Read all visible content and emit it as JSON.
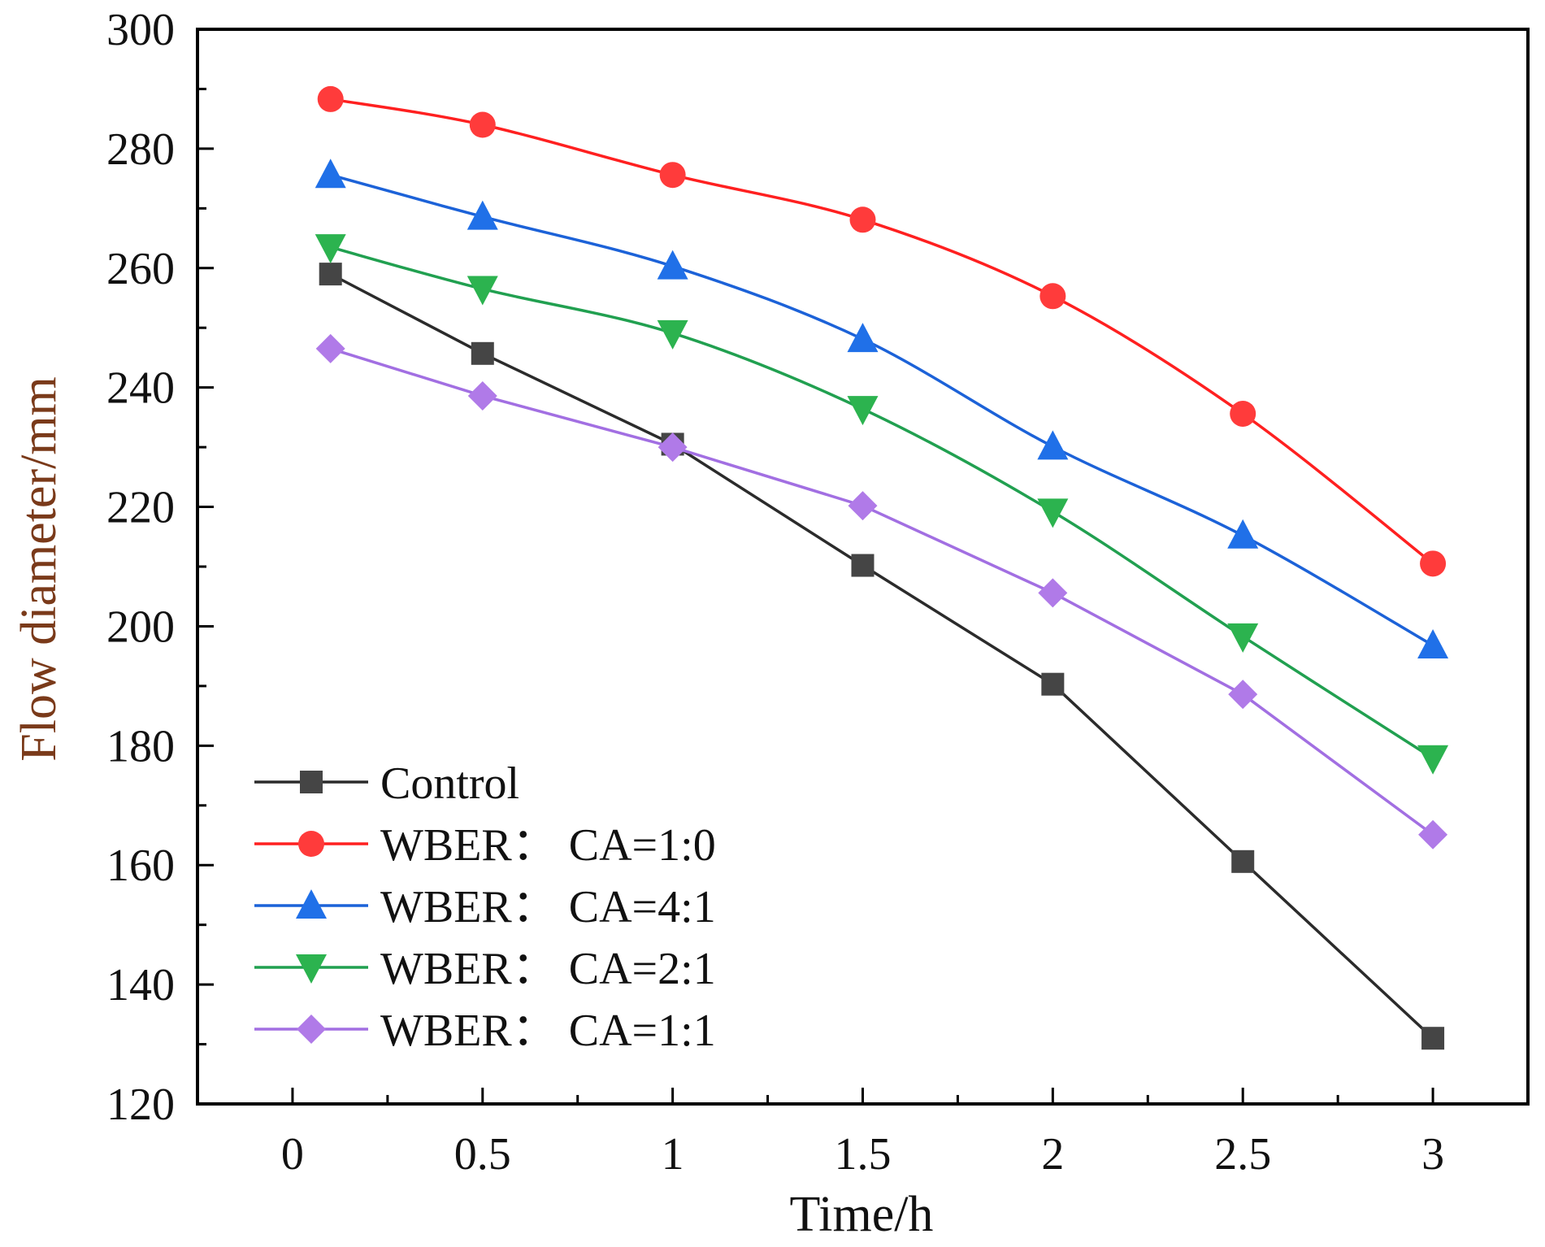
{
  "chart_data": {
    "type": "line",
    "title": "",
    "xlabel": "Time/h",
    "ylabel": "Flow diameter/mm",
    "xlim": [
      -0.25,
      3.25
    ],
    "ylim": [
      120,
      300
    ],
    "xticks": [
      0,
      0.5,
      1,
      1.5,
      2,
      2.5,
      3
    ],
    "xtick_labels": [
      "0",
      "0.5",
      "1",
      "1.5",
      "2",
      "2.5",
      "3"
    ],
    "yticks": [
      120,
      140,
      160,
      180,
      200,
      220,
      240,
      260,
      280,
      300
    ],
    "ytick_labels": [
      "120",
      "140",
      "160",
      "180",
      "200",
      "220",
      "240",
      "260",
      "280",
      "300"
    ],
    "x": [
      0.1,
      0.5,
      1,
      1.5,
      2,
      2.5,
      3
    ],
    "legend_position": "bottom-left",
    "grid": false,
    "series": [
      {
        "name": "Control",
        "marker": "square",
        "color": "#2b2b2b",
        "marker_color": "#454545",
        "smooth": false,
        "values": [
          259,
          245.7,
          230.5,
          210.2,
          190.3,
          160.6,
          131
        ]
      },
      {
        "name": "WBER： CA=1:0",
        "marker": "circle",
        "color": "#ff2020",
        "marker_color": "#ff3b3b",
        "smooth": true,
        "values": [
          288.3,
          284,
          275.6,
          268.1,
          255.3,
          235.6,
          210.5
        ]
      },
      {
        "name": "WBER： CA=4:1",
        "marker": "triangle-up",
        "color": "#1c62d8",
        "marker_color": "#2070e8",
        "smooth": true,
        "values": [
          275.6,
          268.6,
          260.3,
          248.1,
          230.1,
          215.2,
          196.8
        ]
      },
      {
        "name": "WBER： CA=2:1",
        "marker": "triangle-down",
        "color": "#21a050",
        "marker_color": "#2cb34f",
        "smooth": true,
        "values": [
          263.5,
          256.5,
          249.1,
          236.4,
          219.2,
          198.3,
          177.9
        ]
      },
      {
        "name": "WBER： CA=1:1",
        "marker": "diamond",
        "color": "#a26fe2",
        "marker_color": "#b07ae8",
        "smooth": false,
        "values": [
          246.5,
          238.6,
          230,
          220.2,
          205.6,
          188.6,
          165.1
        ]
      }
    ]
  }
}
